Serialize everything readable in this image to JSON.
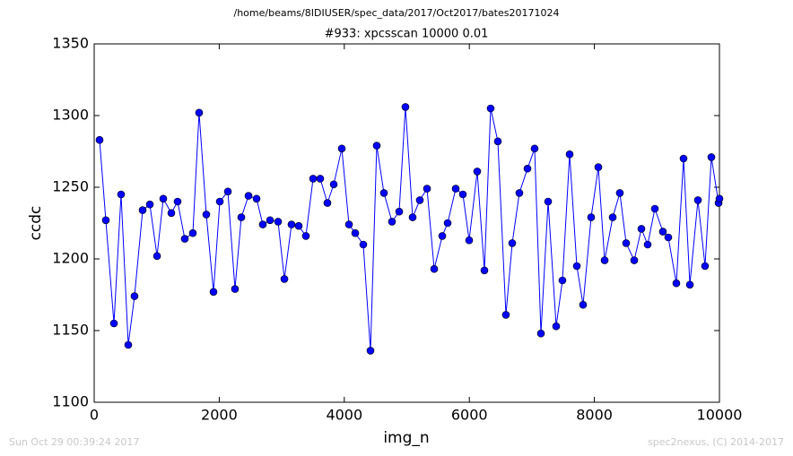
{
  "chart_data": {
    "type": "line",
    "suptitle": "/home/beams/8IDIUSER/spec_data/2017/Oct2017/bates20171024",
    "title": "#933: xpcsscan 10000 0.01",
    "x_label": "img_n",
    "y_label": "ccdc",
    "timestamp": "Sun Oct 29 00:39:24 2017",
    "credit": "spec2nexus, (C) 2014-2017",
    "xlim": [
      0,
      10000
    ],
    "ylim": [
      1100,
      1350
    ],
    "xticks": [
      0,
      2000,
      4000,
      6000,
      8000,
      10000
    ],
    "yticks": [
      1100,
      1150,
      1200,
      1250,
      1300,
      1350
    ],
    "grid": false,
    "x": [
      86,
      186,
      316,
      430,
      545,
      645,
      775,
      890,
      1005,
      1105,
      1234,
      1334,
      1449,
      1578,
      1678,
      1793,
      1908,
      2009,
      2138,
      2252,
      2353,
      2468,
      2597,
      2697,
      2812,
      2941,
      3042,
      3156,
      3271,
      3386,
      3501,
      3615,
      3730,
      3831,
      3960,
      4075,
      4175,
      4304,
      4419,
      4519,
      4634,
      4763,
      4878,
      4978,
      5093,
      5208,
      5323,
      5438,
      5567,
      5653,
      5782,
      5897,
      5997,
      6126,
      6241,
      6341,
      6456,
      6585,
      6686,
      6800,
      6930,
      7044,
      7145,
      7260,
      7389,
      7489,
      7604,
      7719,
      7819,
      7948,
      8063,
      8164,
      8293,
      8407,
      8508,
      8637,
      8752,
      8852,
      8967,
      9096,
      9182,
      9311,
      9426,
      9527,
      9656,
      9770,
      9871,
      9986,
      10000
    ],
    "series": [
      {
        "name": "ccdc",
        "color": "#0000ff",
        "values": [
          1283,
          1227,
          1155,
          1245,
          1140,
          1174,
          1234,
          1238,
          1202,
          1242,
          1232,
          1240,
          1214,
          1218,
          1302,
          1231,
          1177,
          1240,
          1247,
          1179,
          1229,
          1244,
          1242,
          1224,
          1227,
          1226,
          1186,
          1224,
          1223,
          1216,
          1256,
          1256,
          1239,
          1252,
          1277,
          1224,
          1218,
          1210,
          1136,
          1279,
          1246,
          1226,
          1233,
          1306,
          1229,
          1241,
          1249,
          1193,
          1216,
          1225,
          1249,
          1245,
          1213,
          1261,
          1192,
          1305,
          1282,
          1161,
          1211,
          1246,
          1263,
          1277,
          1148,
          1240,
          1153,
          1185,
          1273,
          1195,
          1168,
          1229,
          1264,
          1199,
          1229,
          1246,
          1211,
          1199,
          1221,
          1210,
          1235,
          1219,
          1215,
          1183,
          1270,
          1182,
          1241,
          1195,
          1271,
          1239,
          1242
        ]
      }
    ]
  }
}
